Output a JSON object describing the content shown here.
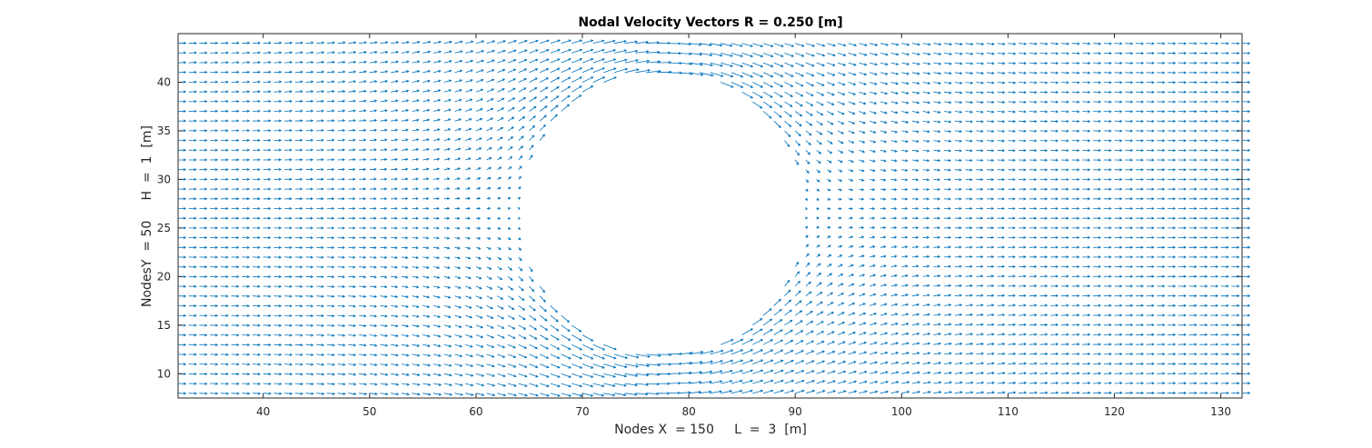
{
  "chart_data": {
    "type": "quiver",
    "title": "Nodal Velocity Vectors R = 0.250 [m]",
    "xlabel": "Nodes X  = 150     L  =  3  [m]",
    "ylabel": "NodesY  = 50     H  =  1  [m]",
    "xlim": [
      32,
      132
    ],
    "ylim": [
      7.5,
      45
    ],
    "xticks": [
      40,
      50,
      60,
      70,
      80,
      90,
      100,
      110,
      120,
      130
    ],
    "yticks": [
      10,
      15,
      20,
      25,
      30,
      35,
      40
    ],
    "grid": false,
    "color": "#0072BD",
    "field": {
      "x_nodes": {
        "start": 32,
        "end": 132,
        "step": 1
      },
      "y_nodes": {
        "start": 8,
        "end": 44,
        "step": 1
      },
      "obstacle": {
        "shape": "circle",
        "center": [
          77.5,
          26.5
        ],
        "radius_y": 13.5
      },
      "freestream_velocity": [
        1,
        0
      ]
    }
  }
}
